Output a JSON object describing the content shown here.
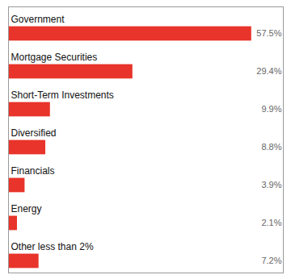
{
  "chart_data": {
    "type": "bar",
    "orientation": "horizontal",
    "categories": [
      "Government",
      "Mortgage Securities",
      "Short-Term Investments",
      "Diversified",
      "Financials",
      "Energy",
      "Other less than 2%"
    ],
    "values": [
      57.5,
      29.4,
      9.9,
      8.8,
      3.9,
      2.1,
      7.2
    ],
    "value_labels": [
      "57.5%",
      "29.4%",
      "9.9%",
      "8.8%",
      "3.9%",
      "2.1%",
      "7.2%"
    ],
    "color": "#e8342a",
    "xlim": [
      0,
      65
    ],
    "data_labels": true,
    "tick_labels": false
  }
}
